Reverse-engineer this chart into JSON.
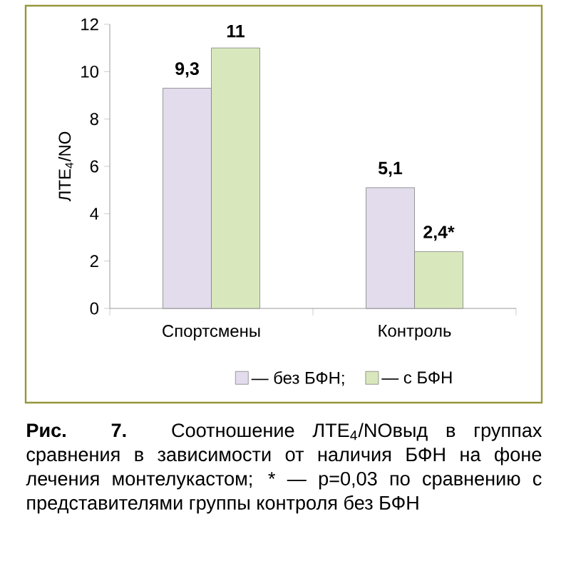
{
  "chart_data": {
    "type": "bar",
    "categories": [
      "Спортсмены",
      "Контроль"
    ],
    "series": [
      {
        "name": "— без БФН;",
        "color": "#e2dcec",
        "values": [
          9.3,
          5.1
        ],
        "value_labels": [
          "9,3",
          "5,1"
        ]
      },
      {
        "name": "— с БФН",
        "color": "#d8e8bc",
        "values": [
          11,
          2.4
        ],
        "value_labels": [
          "11",
          "2,4*"
        ]
      }
    ],
    "ylabel": "ЛТЕ$_{4}$/NO",
    "ylim": [
      0,
      12
    ],
    "yticks": [
      0,
      2,
      4,
      6,
      8,
      10,
      12
    ],
    "grid": false,
    "legend": "bottom",
    "annotations": [
      "**Рис. 7.** Соотношение ЛТЕ$_{4}$/NOвыд в группах сравнения в зависимости от наличия БФН на фоне лечения монтелукастом; * — p=0,03 по сравнению с представителями группы контроля без БФН"
    ]
  }
}
